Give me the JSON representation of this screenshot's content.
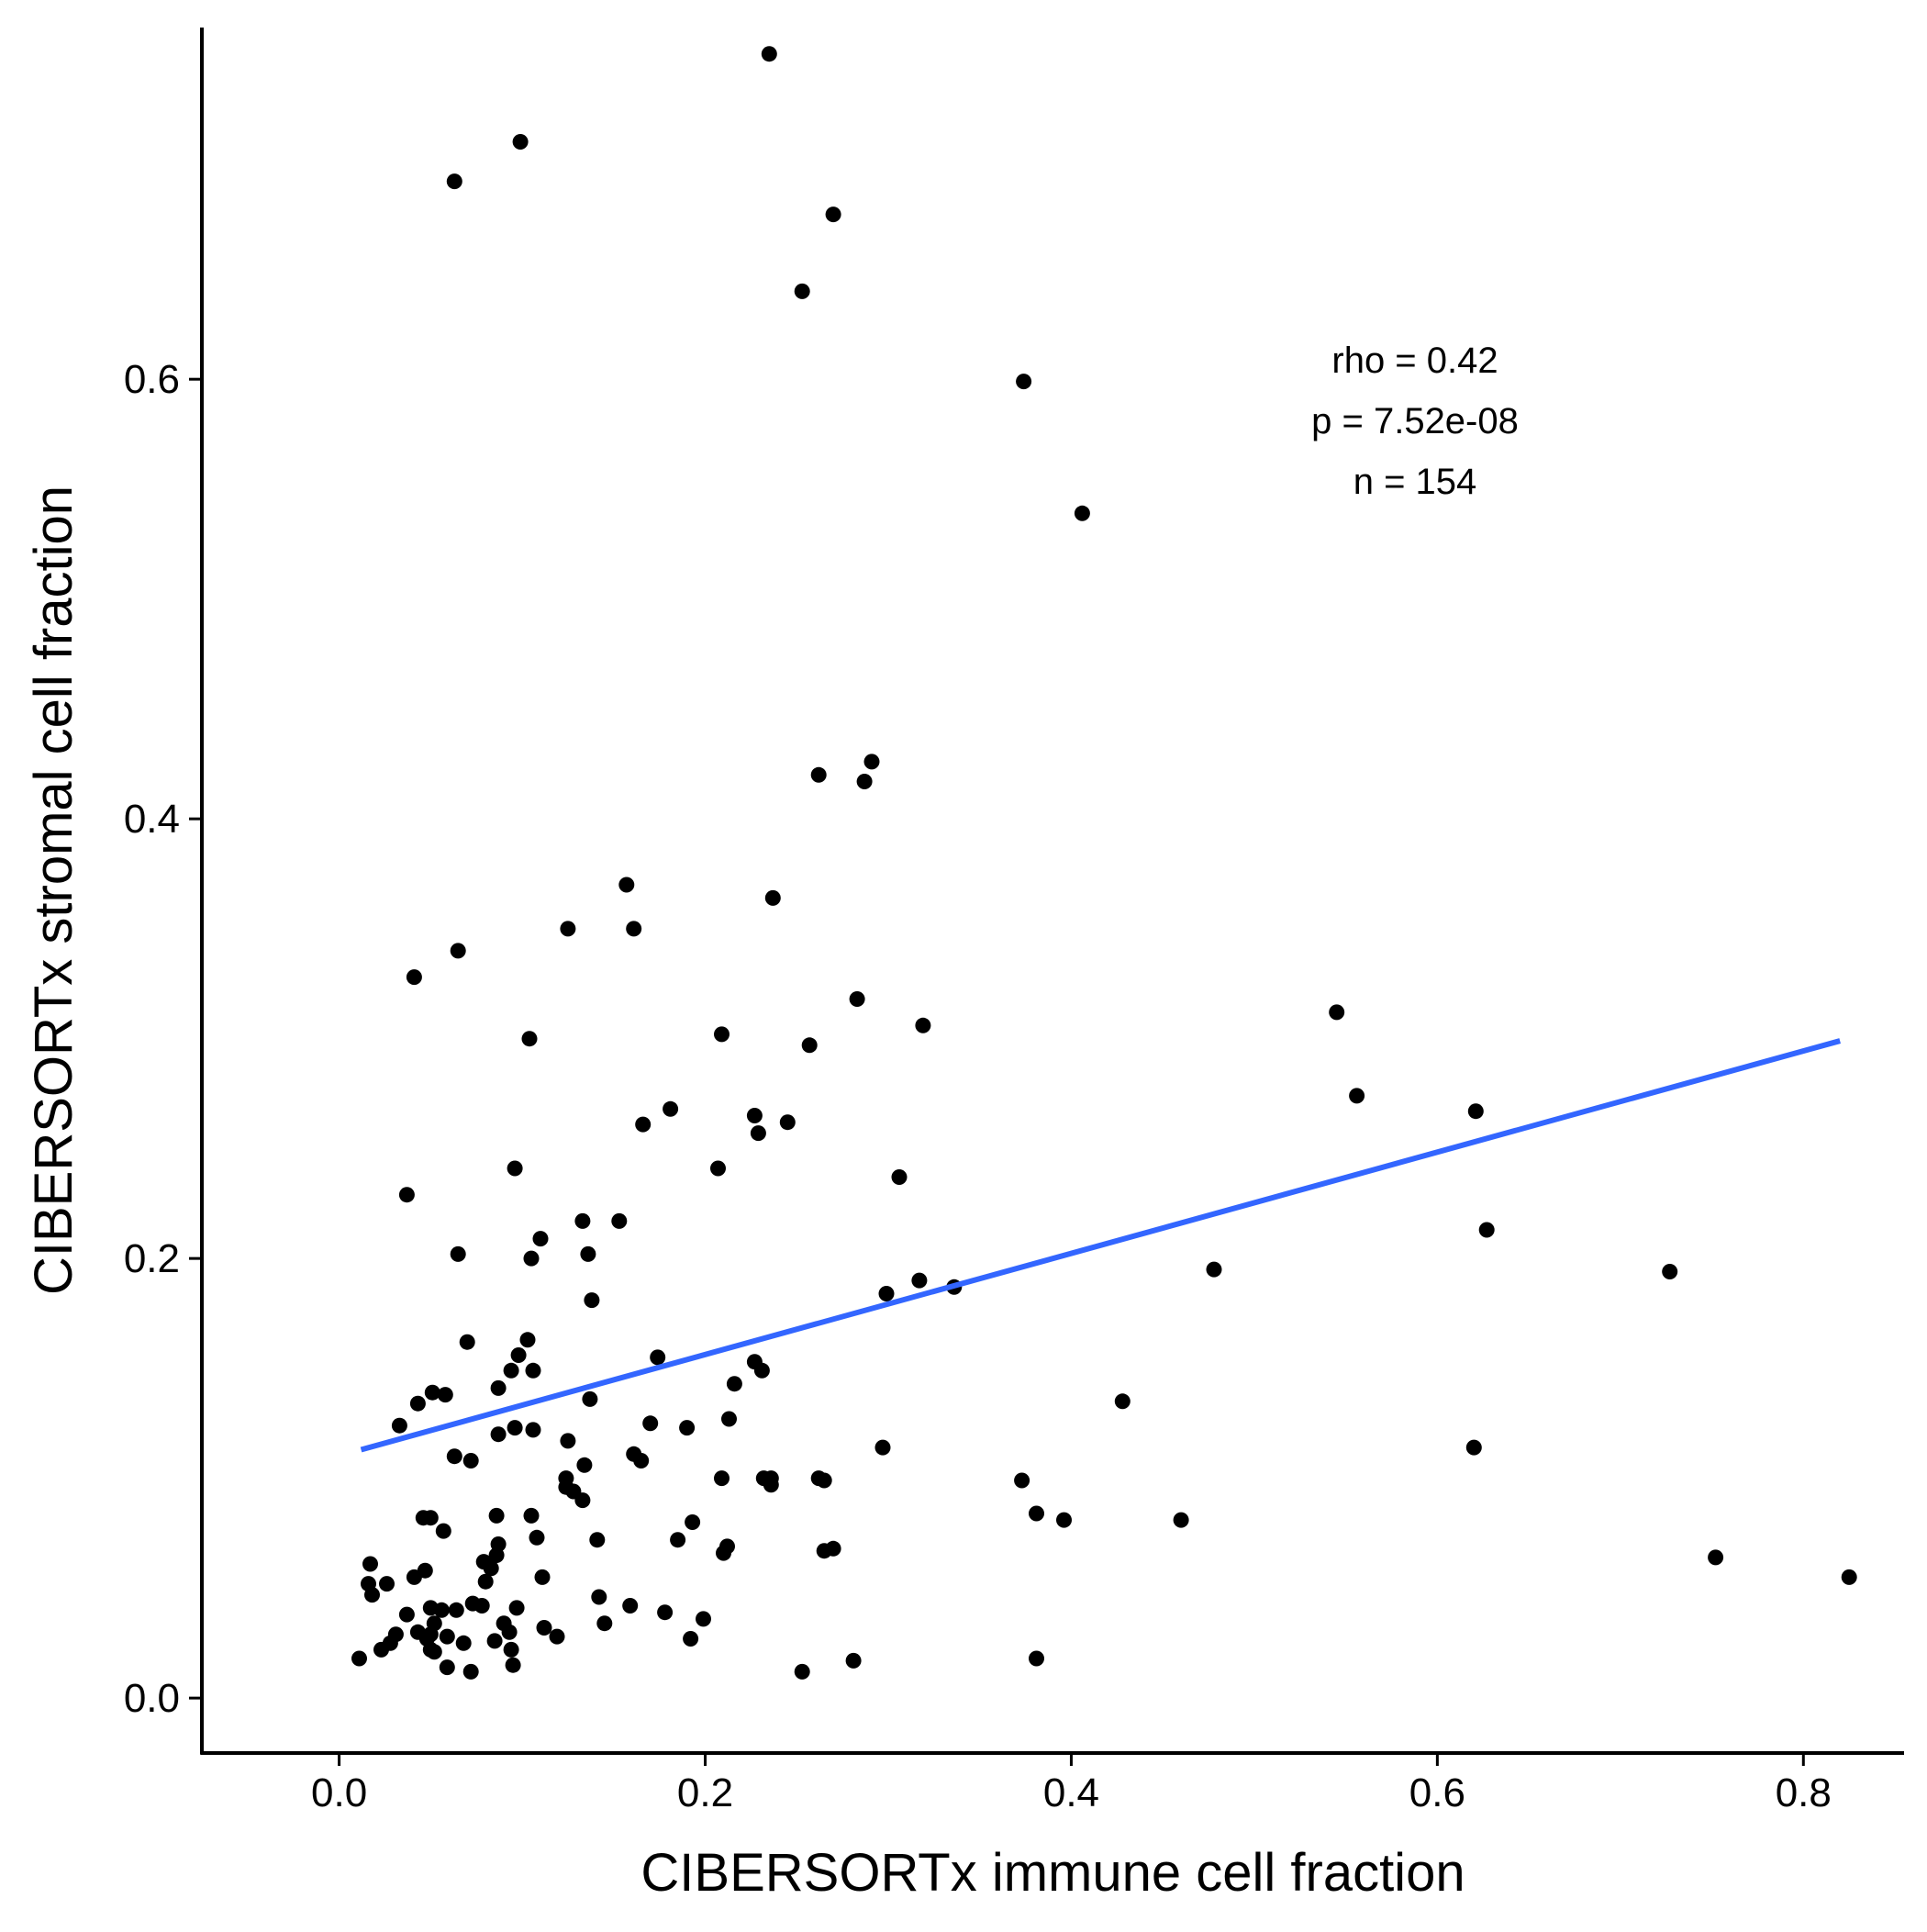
{
  "chart_data": {
    "type": "scatter",
    "title": "",
    "xlabel": "CIBERSORTx immune cell fraction",
    "ylabel": "CIBERSORTx stromal cell fraction",
    "xlim": [
      -0.075,
      0.855
    ],
    "ylim": [
      -0.025,
      0.76
    ],
    "xticks": [
      0.0,
      0.2,
      0.4,
      0.6,
      0.8
    ],
    "xtick_labels": [
      "0.0",
      "0.2",
      "0.4",
      "0.6",
      "0.8"
    ],
    "yticks": [
      0.0,
      0.2,
      0.4,
      0.6
    ],
    "ytick_labels": [
      "0.0",
      "0.2",
      "0.4",
      "0.6"
    ],
    "grid": false,
    "point_color": "#000000",
    "fit_line_color": "#3366FF",
    "fit_line": {
      "x": [
        0.012,
        0.82
      ],
      "y": [
        0.113,
        0.299
      ]
    },
    "annotations": [
      "rho = 0.42",
      "p = 7.52e-08",
      "n = 154"
    ],
    "points": [
      [
        0.235,
        0.748
      ],
      [
        0.099,
        0.708
      ],
      [
        0.063,
        0.69
      ],
      [
        0.27,
        0.675
      ],
      [
        0.253,
        0.64
      ],
      [
        0.374,
        0.599
      ],
      [
        0.406,
        0.539
      ],
      [
        0.291,
        0.426
      ],
      [
        0.262,
        0.42
      ],
      [
        0.287,
        0.417
      ],
      [
        0.157,
        0.37
      ],
      [
        0.237,
        0.364
      ],
      [
        0.125,
        0.35
      ],
      [
        0.161,
        0.35
      ],
      [
        0.065,
        0.34
      ],
      [
        0.041,
        0.328
      ],
      [
        0.283,
        0.318
      ],
      [
        0.545,
        0.312
      ],
      [
        0.319,
        0.306
      ],
      [
        0.209,
        0.302
      ],
      [
        0.104,
        0.3
      ],
      [
        0.257,
        0.297
      ],
      [
        0.556,
        0.274
      ],
      [
        0.181,
        0.268
      ],
      [
        0.621,
        0.267
      ],
      [
        0.227,
        0.265
      ],
      [
        0.245,
        0.262
      ],
      [
        0.166,
        0.261
      ],
      [
        0.229,
        0.257
      ],
      [
        0.207,
        0.241
      ],
      [
        0.096,
        0.241
      ],
      [
        0.306,
        0.237
      ],
      [
        0.037,
        0.229
      ],
      [
        0.133,
        0.217
      ],
      [
        0.153,
        0.217
      ],
      [
        0.627,
        0.213
      ],
      [
        0.11,
        0.209
      ],
      [
        0.065,
        0.202
      ],
      [
        0.136,
        0.202
      ],
      [
        0.105,
        0.2
      ],
      [
        0.478,
        0.195
      ],
      [
        0.727,
        0.194
      ],
      [
        0.317,
        0.19
      ],
      [
        0.336,
        0.187
      ],
      [
        0.299,
        0.184
      ],
      [
        0.138,
        0.181
      ],
      [
        0.103,
        0.163
      ],
      [
        0.07,
        0.162
      ],
      [
        0.174,
        0.155
      ],
      [
        0.098,
        0.156
      ],
      [
        0.227,
        0.153
      ],
      [
        0.094,
        0.149
      ],
      [
        0.106,
        0.149
      ],
      [
        0.231,
        0.149
      ],
      [
        0.216,
        0.143
      ],
      [
        0.087,
        0.141
      ],
      [
        0.051,
        0.139
      ],
      [
        0.058,
        0.138
      ],
      [
        0.137,
        0.136
      ],
      [
        0.428,
        0.135
      ],
      [
        0.043,
        0.134
      ],
      [
        0.213,
        0.127
      ],
      [
        0.033,
        0.124
      ],
      [
        0.17,
        0.125
      ],
      [
        0.096,
        0.123
      ],
      [
        0.106,
        0.122
      ],
      [
        0.19,
        0.123
      ],
      [
        0.087,
        0.12
      ],
      [
        0.125,
        0.117
      ],
      [
        0.297,
        0.114
      ],
      [
        0.62,
        0.114
      ],
      [
        0.161,
        0.111
      ],
      [
        0.063,
        0.11
      ],
      [
        0.165,
        0.108
      ],
      [
        0.072,
        0.108
      ],
      [
        0.134,
        0.106
      ],
      [
        0.209,
        0.1
      ],
      [
        0.124,
        0.1
      ],
      [
        0.232,
        0.1
      ],
      [
        0.236,
        0.1
      ],
      [
        0.262,
        0.1
      ],
      [
        0.265,
        0.099
      ],
      [
        0.373,
        0.099
      ],
      [
        0.236,
        0.097
      ],
      [
        0.124,
        0.096
      ],
      [
        0.128,
        0.094
      ],
      [
        0.133,
        0.09
      ],
      [
        0.381,
        0.084
      ],
      [
        0.086,
        0.083
      ],
      [
        0.105,
        0.083
      ],
      [
        0.046,
        0.082
      ],
      [
        0.05,
        0.082
      ],
      [
        0.396,
        0.081
      ],
      [
        0.46,
        0.081
      ],
      [
        0.193,
        0.08
      ],
      [
        0.057,
        0.076
      ],
      [
        0.108,
        0.073
      ],
      [
        0.141,
        0.072
      ],
      [
        0.185,
        0.072
      ],
      [
        0.087,
        0.07
      ],
      [
        0.212,
        0.069
      ],
      [
        0.27,
        0.068
      ],
      [
        0.265,
        0.067
      ],
      [
        0.21,
        0.066
      ],
      [
        0.086,
        0.065
      ],
      [
        0.752,
        0.064
      ],
      [
        0.079,
        0.062
      ],
      [
        0.017,
        0.061
      ],
      [
        0.083,
        0.059
      ],
      [
        0.047,
        0.058
      ],
      [
        0.041,
        0.055
      ],
      [
        0.825,
        0.055
      ],
      [
        0.111,
        0.055
      ],
      [
        0.08,
        0.053
      ],
      [
        0.016,
        0.052
      ],
      [
        0.026,
        0.052
      ],
      [
        0.018,
        0.047
      ],
      [
        0.142,
        0.046
      ],
      [
        0.073,
        0.043
      ],
      [
        0.078,
        0.042
      ],
      [
        0.159,
        0.042
      ],
      [
        0.05,
        0.041
      ],
      [
        0.097,
        0.041
      ],
      [
        0.056,
        0.04
      ],
      [
        0.064,
        0.04
      ],
      [
        0.037,
        0.038
      ],
      [
        0.178,
        0.039
      ],
      [
        0.199,
        0.036
      ],
      [
        0.145,
        0.034
      ],
      [
        0.09,
        0.034
      ],
      [
        0.052,
        0.034
      ],
      [
        0.112,
        0.032
      ],
      [
        0.093,
        0.03
      ],
      [
        0.043,
        0.03
      ],
      [
        0.031,
        0.029
      ],
      [
        0.05,
        0.029
      ],
      [
        0.119,
        0.028
      ],
      [
        0.059,
        0.028
      ],
      [
        0.048,
        0.027
      ],
      [
        0.085,
        0.026
      ],
      [
        0.028,
        0.025
      ],
      [
        0.068,
        0.025
      ],
      [
        0.192,
        0.027
      ],
      [
        0.023,
        0.022
      ],
      [
        0.05,
        0.022
      ],
      [
        0.094,
        0.022
      ],
      [
        0.052,
        0.021
      ],
      [
        0.011,
        0.018
      ],
      [
        0.381,
        0.018
      ],
      [
        0.281,
        0.017
      ],
      [
        0.095,
        0.015
      ],
      [
        0.059,
        0.014
      ],
      [
        0.072,
        0.012
      ],
      [
        0.253,
        0.012
      ]
    ]
  }
}
